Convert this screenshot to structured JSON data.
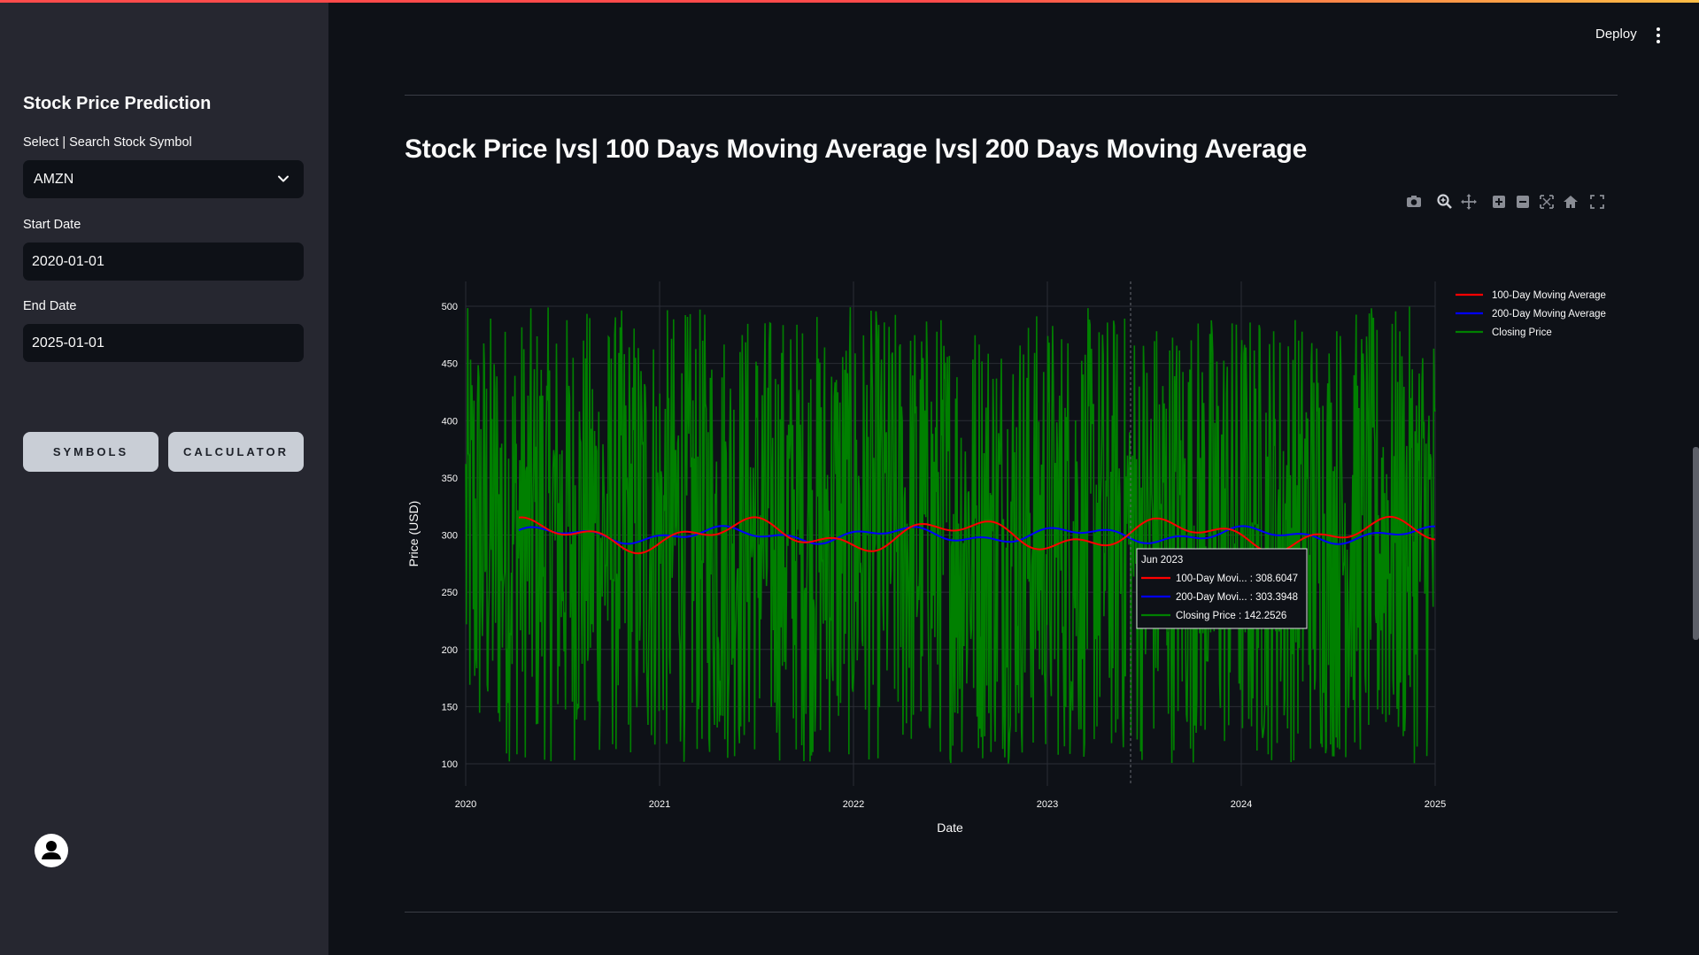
{
  "sidebar": {
    "title": "Stock Price Prediction",
    "symbol_label": "Select | Search Stock Symbol",
    "symbol_value": "AMZN",
    "start_label": "Start Date",
    "start_value": "2020-01-01",
    "end_label": "End Date",
    "end_value": "2025-01-01",
    "symbols_button": "SYMBOLS",
    "calculator_button": "CALCULATOR"
  },
  "header": {
    "deploy_label": "Deploy",
    "menu_icon": "kebab-menu-icon"
  },
  "main": {
    "title": "Stock Price |vs| 100 Days Moving Average |vs| 200 Days Moving Average"
  },
  "modebar_icons": [
    "camera-icon",
    "zoom-icon",
    "pan-icon",
    "zoom-in-icon",
    "zoom-out-icon",
    "autoscale-icon",
    "reset-axes-icon",
    "fullscreen-icon"
  ],
  "chart_data": {
    "type": "line",
    "xlabel": "Date",
    "ylabel": "Price (USD)",
    "x_ticks": [
      "2020",
      "2021",
      "2022",
      "2023",
      "2024",
      "2025"
    ],
    "y_ticks": [
      100,
      150,
      200,
      250,
      300,
      350,
      400,
      450,
      500
    ],
    "xlim": [
      "2020-01-01",
      "2025-01-01"
    ],
    "ylim": [
      100,
      500
    ],
    "grid": true,
    "legend_position": "top-right",
    "series": [
      {
        "name": "100-Day Moving Average",
        "color": "#ff0000",
        "description_values": "oscillates around 300, range ~280–320"
      },
      {
        "name": "200-Day Moving Average",
        "color": "#0000ff",
        "description_values": "oscillates around 300, range ~290–310"
      },
      {
        "name": "Closing Price",
        "color": "#008000",
        "description_values": "random daily values between ~100 and ~500"
      }
    ],
    "hover": {
      "title": "Jun 2023",
      "rows": [
        {
          "label": "100-Day Movi... : 308.6047",
          "color": "#ff0000"
        },
        {
          "label": "200-Day Movi... : 303.3948",
          "color": "#0000ff"
        },
        {
          "label": "Closing Price : 142.2526",
          "color": "#008000"
        }
      ]
    }
  }
}
